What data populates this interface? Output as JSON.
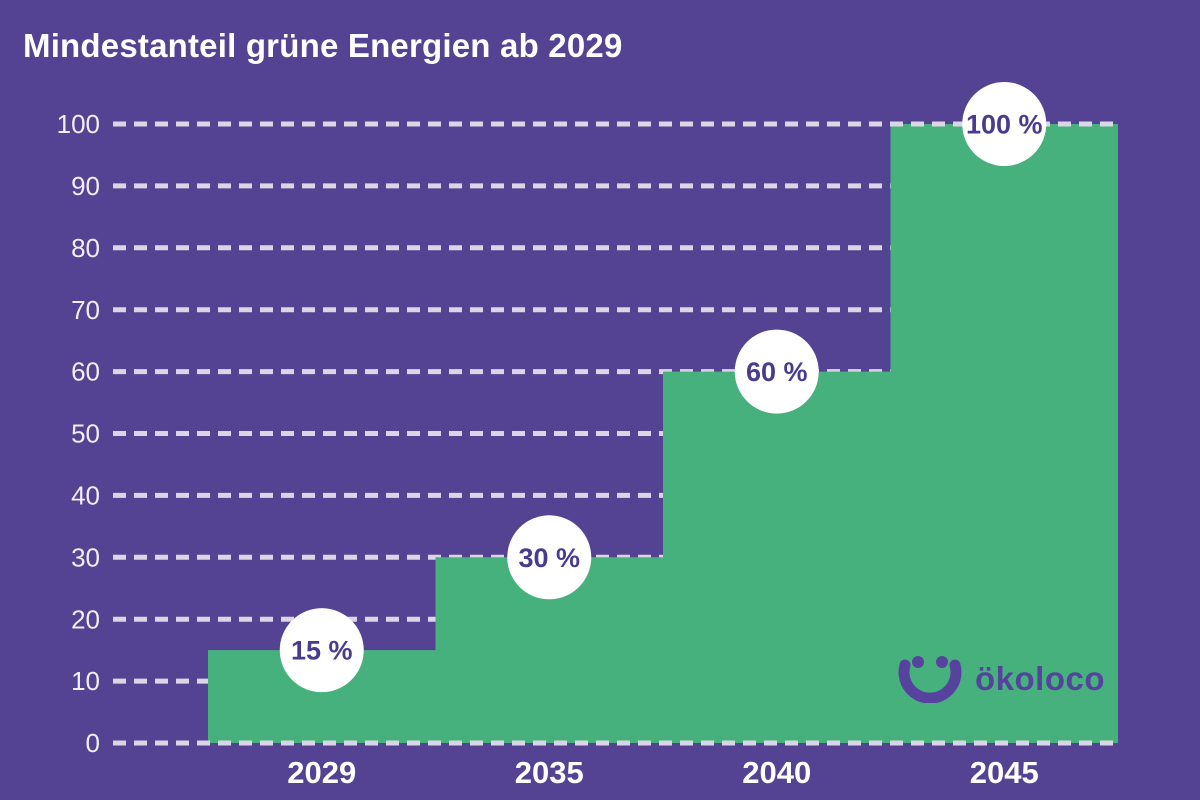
{
  "title": "Mindestanteil grüne Energien ab 2029",
  "logo": {
    "icon": "smiley-icon",
    "text": "ökoloco"
  },
  "colors": {
    "background": "#544392",
    "bar": "#47B17D",
    "grid": "#DAD6E6",
    "axis_text": "#F0EEF8",
    "title_text": "#FFFFFF",
    "badge_bg": "#FFFFFF",
    "badge_text": "#4A3B8F",
    "logo": "#55439E"
  },
  "chart_data": {
    "type": "area",
    "subtype": "step",
    "title": "Mindestanteil grüne Energien ab 2029",
    "categories": [
      "2029",
      "2035",
      "2040",
      "2045"
    ],
    "values": [
      15,
      30,
      60,
      100
    ],
    "value_labels": [
      "15 %",
      "30 %",
      "60 %",
      "100 %"
    ],
    "xlabel": "",
    "ylabel": "",
    "ylim": [
      0,
      100
    ],
    "yticks": [
      0,
      10,
      20,
      30,
      40,
      50,
      60,
      70,
      80,
      90,
      100
    ],
    "grid": "horizontal-dashed",
    "legend": "none"
  }
}
